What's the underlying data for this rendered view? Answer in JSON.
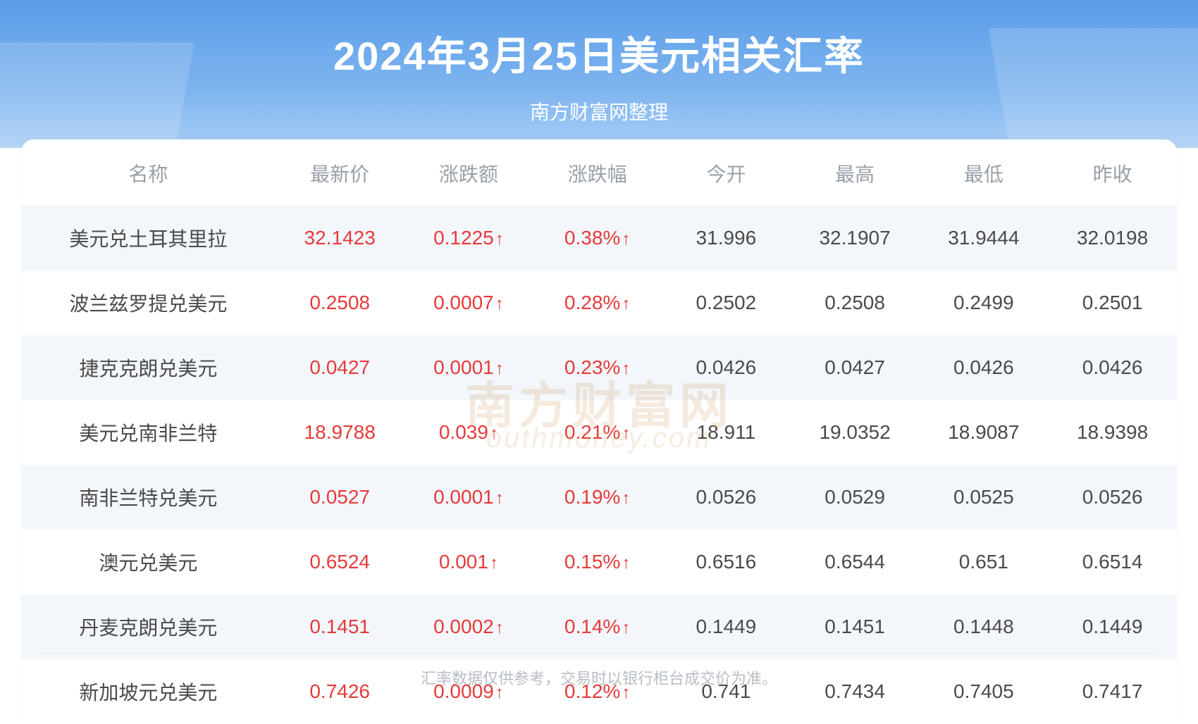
{
  "header": {
    "title": "2024年3月25日美元相关汇率",
    "subtitle": "南方财富网整理",
    "bg_gradient_top": "#5b9de8",
    "bg_gradient_bottom": "#a8cdf5",
    "title_color": "#ffffff",
    "title_fontsize": 56,
    "subtitle_fontsize": 28
  },
  "table": {
    "type": "table",
    "header_color": "#9aa0a8",
    "header_fontsize": 28,
    "cell_fontsize": 28,
    "text_color": "#4a4a4a",
    "up_color": "#e63a3a",
    "row_alt_bg": "#f3f7fb",
    "row_bg": "#ffffff",
    "arrow_up": "↑",
    "columns": [
      "名称",
      "最新价",
      "涨跌额",
      "涨跌幅",
      "今开",
      "最高",
      "最低",
      "昨收"
    ],
    "rows": [
      {
        "name": "美元兑土耳其里拉",
        "latest": "32.1423",
        "change": "0.1225",
        "pct": "0.38%",
        "open": "31.996",
        "high": "32.1907",
        "low": "31.9444",
        "prev": "32.0198",
        "dir": "up"
      },
      {
        "name": "波兰兹罗提兑美元",
        "latest": "0.2508",
        "change": "0.0007",
        "pct": "0.28%",
        "open": "0.2502",
        "high": "0.2508",
        "low": "0.2499",
        "prev": "0.2501",
        "dir": "up"
      },
      {
        "name": "捷克克朗兑美元",
        "latest": "0.0427",
        "change": "0.0001",
        "pct": "0.23%",
        "open": "0.0426",
        "high": "0.0427",
        "low": "0.0426",
        "prev": "0.0426",
        "dir": "up"
      },
      {
        "name": "美元兑南非兰特",
        "latest": "18.9788",
        "change": "0.039",
        "pct": "0.21%",
        "open": "18.911",
        "high": "19.0352",
        "low": "18.9087",
        "prev": "18.9398",
        "dir": "up"
      },
      {
        "name": "南非兰特兑美元",
        "latest": "0.0527",
        "change": "0.0001",
        "pct": "0.19%",
        "open": "0.0526",
        "high": "0.0529",
        "low": "0.0525",
        "prev": "0.0526",
        "dir": "up"
      },
      {
        "name": "澳元兑美元",
        "latest": "0.6524",
        "change": "0.001",
        "pct": "0.15%",
        "open": "0.6516",
        "high": "0.6544",
        "low": "0.651",
        "prev": "0.6514",
        "dir": "up"
      },
      {
        "name": "丹麦克朗兑美元",
        "latest": "0.1451",
        "change": "0.0002",
        "pct": "0.14%",
        "open": "0.1449",
        "high": "0.1451",
        "low": "0.1448",
        "prev": "0.1449",
        "dir": "up"
      },
      {
        "name": "新加坡元兑美元",
        "latest": "0.7426",
        "change": "0.0009",
        "pct": "0.12%",
        "open": "0.741",
        "high": "0.7434",
        "low": "0.7405",
        "prev": "0.7417",
        "dir": "up"
      }
    ]
  },
  "watermark": {
    "main": "南方财富网",
    "sub": "outhmoney.com",
    "color": "rgba(210,160,100,0.22)"
  },
  "footer": {
    "text": "汇率数据仅供参考，交易时以银行柜台成交价为准。",
    "color": "#b8bdc4",
    "fontsize": 22,
    "line_color": "#e6e6e6"
  }
}
